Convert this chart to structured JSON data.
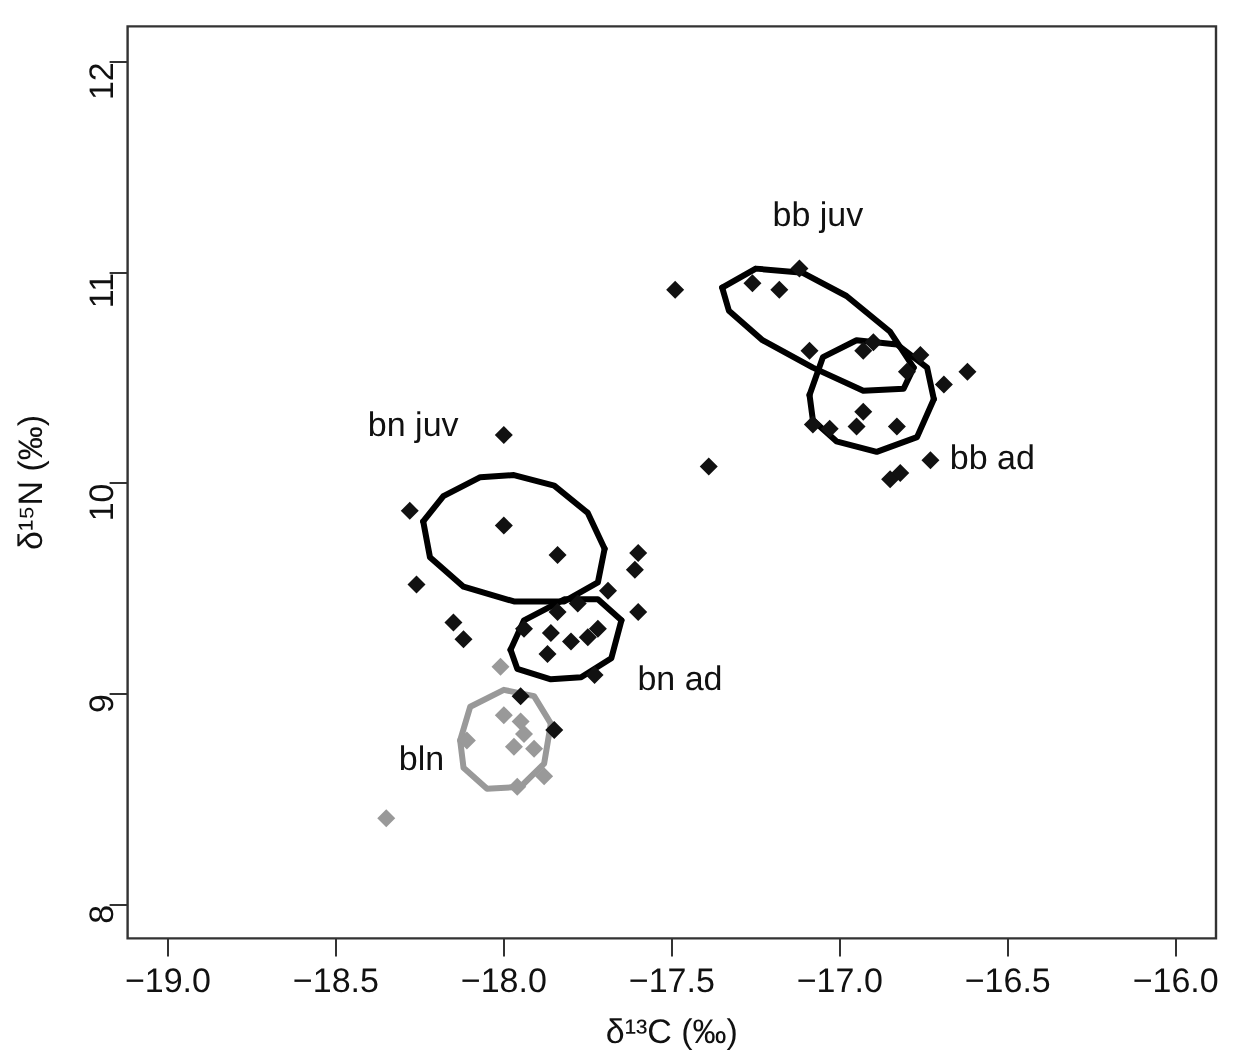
{
  "chart_data": {
    "type": "scatter",
    "xlabel": "δ¹³C (‰)",
    "ylabel": "δ¹⁵N (‰)",
    "xlim": [
      -19.12,
      -15.88
    ],
    "ylim": [
      7.84,
      12.17
    ],
    "xticks": [
      {
        "value": -19,
        "label": "−19.0"
      },
      {
        "value": -18.5,
        "label": "−18.5"
      },
      {
        "value": -18,
        "label": "−18.0"
      },
      {
        "value": -17.5,
        "label": "−17.5"
      },
      {
        "value": -17,
        "label": "−17.0"
      },
      {
        "value": -16.5,
        "label": "−16.5"
      },
      {
        "value": -16,
        "label": "−16.0"
      }
    ],
    "yticks": [
      8,
      9,
      10,
      11,
      12
    ],
    "grid": false,
    "legend": false,
    "marker": "diamond",
    "series": [
      {
        "type": "scatter",
        "color": "#111111",
        "x": [
          -17.49,
          -17.26,
          -17.18,
          -17.12,
          -17.09,
          -16.93,
          -16.9,
          -16.81,
          -16.8,
          -16.76,
          -16.69,
          -16.62,
          -17.08,
          -17.03,
          -16.93,
          -16.95,
          -16.83,
          -16.73,
          -16.85,
          -16.82,
          -17.39,
          -18.0,
          -18.28,
          -18.0,
          -17.84,
          -17.6,
          -17.61,
          -18.26,
          -17.69,
          -17.6,
          -18.15,
          -18.12,
          -17.94,
          -17.86,
          -17.78,
          -17.84,
          -17.87,
          -17.8,
          -17.75,
          -17.72,
          -17.73,
          -17.95,
          -17.85
        ],
        "values": [
          10.92,
          10.95,
          10.92,
          11.02,
          10.63,
          10.63,
          10.67,
          null,
          10.53,
          10.61,
          10.47,
          10.53,
          10.28,
          10.26,
          10.34,
          10.27,
          10.27,
          10.11,
          10.02,
          10.05,
          10.08,
          10.23,
          9.87,
          9.8,
          9.66,
          9.67,
          9.59,
          9.52,
          9.49,
          9.39,
          9.34,
          9.26,
          9.31,
          9.29,
          9.43,
          9.39,
          9.19,
          9.25,
          9.27,
          9.31,
          9.09,
          8.99,
          8.83
        ]
      },
      {
        "type": "scatter",
        "color": "#999999",
        "x": [
          -18.01,
          -18.0,
          -17.95,
          -17.94,
          -17.97,
          -17.91,
          -18.11,
          -17.88,
          -17.96,
          -18.35
        ],
        "values": [
          9.13,
          8.9,
          8.87,
          8.81,
          8.75,
          8.74,
          8.78,
          8.61,
          8.56,
          8.41
        ]
      },
      {
        "type": "line",
        "name": "bn juv",
        "color": "#000000",
        "marker": "none",
        "x": [
          -18.24,
          -18.18,
          -18.07,
          -17.97,
          -17.85,
          -17.75,
          -17.7
        ],
        "values": [
          9.82,
          9.94,
          10.03,
          10.04,
          9.99,
          9.86,
          9.69
        ]
      },
      {
        "type": "line",
        "color": "#000000",
        "marker": "none",
        "x": [
          -18.24,
          -18.22,
          -18.12,
          -17.97,
          -17.82,
          -17.72,
          -17.7
        ],
        "values": [
          9.82,
          9.65,
          9.51,
          9.44,
          9.44,
          9.53,
          9.69
        ]
      },
      {
        "type": "line",
        "name": "bn ad",
        "color": "#000000",
        "marker": "none",
        "x": [
          -17.98,
          -17.94,
          -17.82,
          -17.72,
          -17.65
        ],
        "values": [
          9.21,
          9.35,
          9.45,
          9.45,
          9.35
        ]
      },
      {
        "type": "line",
        "color": "#000000",
        "marker": "none",
        "x": [
          -17.98,
          -17.96,
          -17.86,
          -17.77,
          -17.68,
          -17.65
        ],
        "values": [
          9.21,
          9.12,
          9.07,
          9.08,
          9.17,
          9.35
        ]
      },
      {
        "type": "line",
        "name": "bln",
        "color": "#999999",
        "marker": "none",
        "x": [
          -18.13,
          -18.1,
          -18.0,
          -17.91,
          -17.86
        ],
        "values": [
          8.78,
          8.94,
          9.02,
          8.99,
          8.86
        ]
      },
      {
        "type": "line",
        "color": "#999999",
        "marker": "none",
        "x": [
          -18.13,
          -18.12,
          -18.05,
          -17.95,
          -17.88,
          -17.86
        ],
        "values": [
          8.78,
          8.65,
          8.55,
          8.56,
          8.67,
          8.86
        ]
      },
      {
        "type": "line",
        "name": "bb juv",
        "color": "#000000",
        "marker": "none",
        "x": [
          -17.35,
          -17.25,
          -17.11,
          -16.98,
          -16.85,
          -16.78
        ],
        "values": [
          10.93,
          11.02,
          11.0,
          10.89,
          10.72,
          10.55
        ]
      },
      {
        "type": "line",
        "color": "#000000",
        "marker": "none",
        "x": [
          -17.35,
          -17.33,
          -17.23,
          -17.08,
          -16.93,
          -16.81,
          -16.78
        ],
        "values": [
          10.93,
          10.82,
          10.68,
          10.55,
          10.44,
          10.45,
          10.55
        ]
      },
      {
        "type": "line",
        "name": "bb ad",
        "color": "#000000",
        "marker": "none",
        "x": [
          -17.09,
          -17.05,
          -16.95,
          -16.83,
          -16.74,
          -16.72
        ],
        "values": [
          10.42,
          10.6,
          10.68,
          10.66,
          10.55,
          10.4
        ]
      },
      {
        "type": "line",
        "color": "#000000",
        "marker": "none",
        "x": [
          -17.09,
          -17.08,
          -17.01,
          -16.89,
          -16.77,
          -16.72
        ],
        "values": [
          10.42,
          10.3,
          10.2,
          10.15,
          10.22,
          10.4
        ]
      }
    ]
  }
}
